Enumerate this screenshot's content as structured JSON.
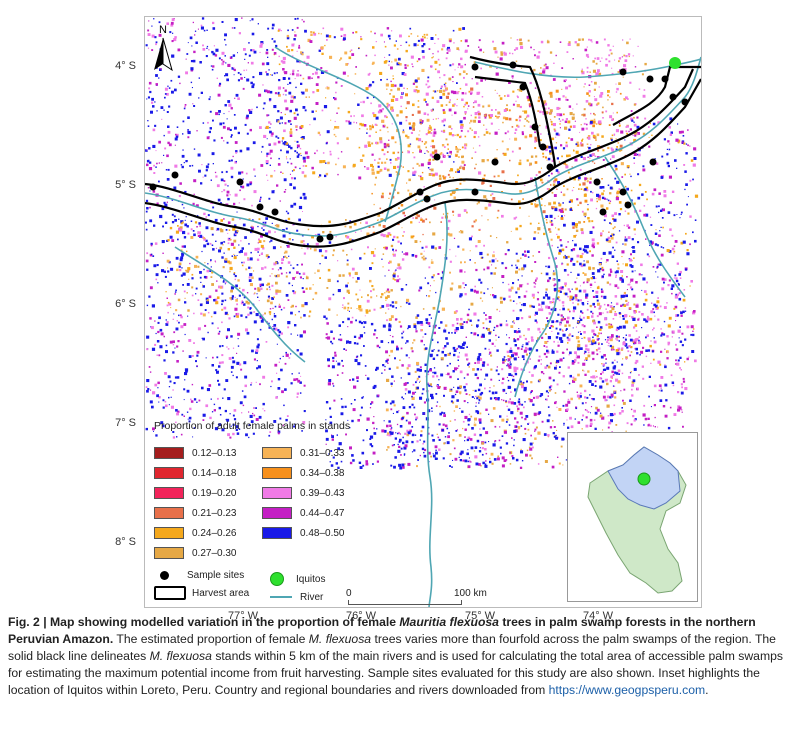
{
  "map": {
    "north_label": "N",
    "lat_labels": [
      "4° S",
      "5° S",
      "6° S",
      "7° S",
      "8° S"
    ],
    "lon_labels": [
      "77° W",
      "76° W",
      "75° W",
      "74° W"
    ],
    "scale": {
      "start": "0",
      "end": "100 km"
    }
  },
  "legend": {
    "title": "Proportion of adult female palms in stands",
    "classes": [
      {
        "label": "0.12–0.13",
        "color": "#a51d1d"
      },
      {
        "label": "0.14–0.18",
        "color": "#e0262f"
      },
      {
        "label": "0.19–0.20",
        "color": "#f2245a"
      },
      {
        "label": "0.21–0.23",
        "color": "#e8704a"
      },
      {
        "label": "0.24–0.26",
        "color": "#f5a81c"
      },
      {
        "label": "0.27–0.30",
        "color": "#e6a845"
      },
      {
        "label": "0.31–0.33",
        "color": "#f7b356"
      },
      {
        "label": "0.34–0.38",
        "color": "#f7901c"
      },
      {
        "label": "0.39–0.43",
        "color": "#f07ae6"
      },
      {
        "label": "0.44–0.47",
        "color": "#c41fc4"
      },
      {
        "label": "0.48–0.50",
        "color": "#1a1ae8"
      }
    ],
    "sample_sites": "Sample sites",
    "iquitos": "Iquitos",
    "harvest_area": "Harvest area",
    "river": "River"
  },
  "colors": {
    "river": "#4fa6b3",
    "iquitos": "#2ee02e",
    "inset_peru": "#cfe8c8",
    "inset_loreto": "#c2d4f5"
  },
  "caption": {
    "title": "Fig. 2 | Map showing modelled variation in the proportion of female ",
    "title_species": "Mauritia flexuosa",
    "title_rest": " trees in palm swamp forests in the northern Peruvian Amazon.",
    "body1": " The estimated proportion of female ",
    "body_species1": "M. flexuosa",
    "body2": " trees varies more than fourfold across the palm swamps of the region. The solid black line delineates ",
    "body_species2": "M. flexuosa",
    "body3": " stands within 5 km of the main rivers and is used for calculating the total area of accessible palm swamps for estimating the maximum potential income from fruit harvesting. Sample sites evaluated for this study are also shown. Inset highlights the location of Iquitos within Loreto, Peru. Country and regional boundaries and rivers downloaded from ",
    "link": "https://www.geogpsperu.com",
    "end": "."
  }
}
